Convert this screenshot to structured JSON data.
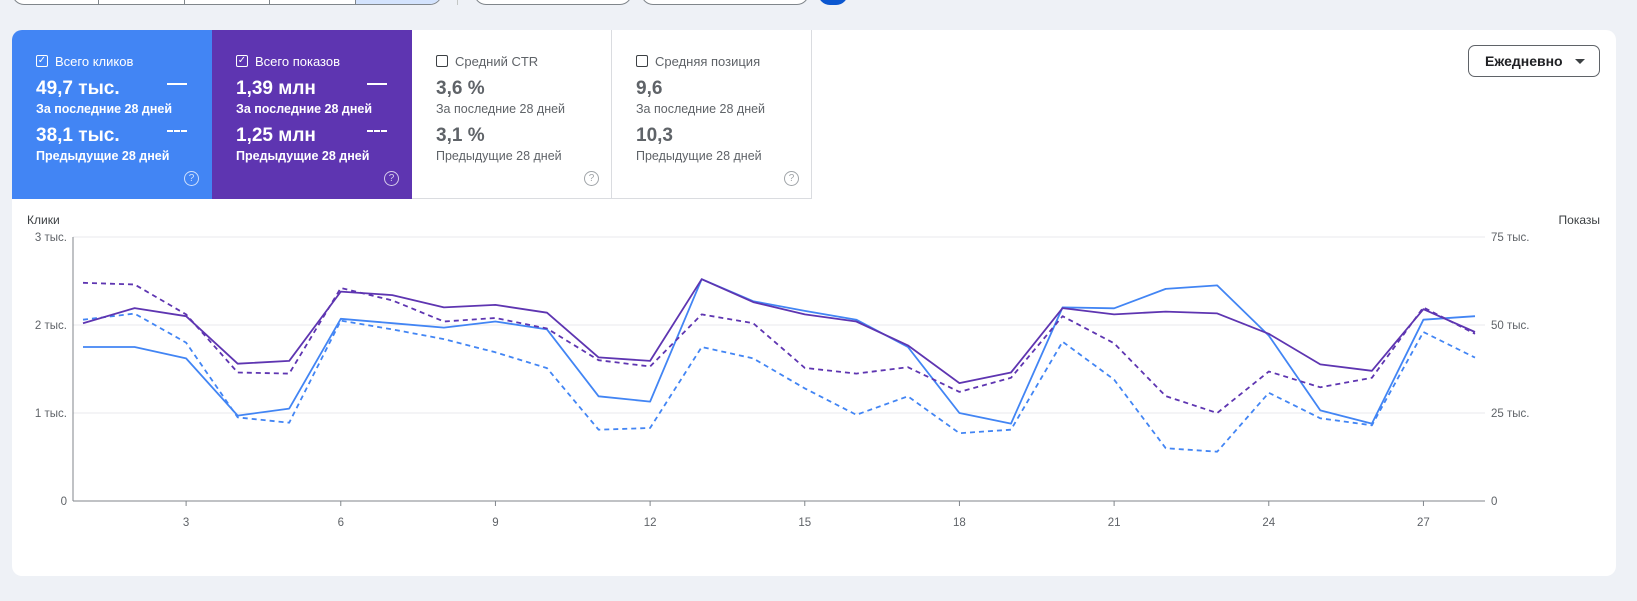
{
  "metrics": {
    "clicks": {
      "label": "Всего кликов",
      "value": "49,7 тыс.",
      "value_period": "За последние 28 дней",
      "prev": "38,1 тыс.",
      "prev_period": "Предыдущие 28 дней",
      "checked": true,
      "color": "#4285f4"
    },
    "impressions": {
      "label": "Всего показов",
      "value": "1,39 млн",
      "value_period": "За последние 28 дней",
      "prev": "1,25 млн",
      "prev_period": "Предыдущие 28 дней",
      "checked": true,
      "color": "#5e35b1"
    },
    "ctr": {
      "label": "Средний CTR",
      "value": "3,6 %",
      "value_period": "За последние 28 дней",
      "prev": "3,1 %",
      "prev_period": "Предыдущие 28 дней",
      "checked": false
    },
    "position": {
      "label": "Средняя позиция",
      "value": "9,6",
      "value_period": "За последние 28 дней",
      "prev": "10,3",
      "prev_period": "Предыдущие 28 дней",
      "checked": false
    }
  },
  "dropdown": {
    "selected": "Ежедневно"
  },
  "icons": {
    "help": "help-circle-icon",
    "checkbox": "checkbox-icon",
    "caret": "caret-down-icon"
  },
  "chart_data": {
    "type": "line",
    "ylabel_left": "Клики",
    "ylabel_right": "Показы",
    "left_ticks": [
      "0",
      "1 тыс.",
      "2 тыс.",
      "3 тыс."
    ],
    "right_ticks": [
      "0",
      "25 тыс.",
      "50 тыс.",
      "75 тыс."
    ],
    "ylim_left": [
      0,
      3000
    ],
    "ylim_right": [
      0,
      75000
    ],
    "x": [
      1,
      2,
      3,
      4,
      5,
      6,
      7,
      8,
      9,
      10,
      11,
      12,
      13,
      14,
      15,
      16,
      17,
      18,
      19,
      20,
      21,
      22,
      23,
      24,
      25,
      26,
      27,
      28
    ],
    "x_ticks": [
      3,
      6,
      9,
      12,
      15,
      18,
      21,
      24,
      27
    ],
    "grid": true,
    "series": [
      {
        "name": "Всего кликов — За последние 28 дней",
        "axis": "left",
        "color": "#4285f4",
        "dash": false,
        "values": [
          1750,
          1750,
          1620,
          970,
          1050,
          2070,
          2020,
          1970,
          2040,
          1950,
          1190,
          1130,
          2520,
          2270,
          2160,
          2060,
          1750,
          1000,
          880,
          2200,
          2190,
          2410,
          2450,
          1880,
          1030,
          880,
          2060,
          2100
        ]
      },
      {
        "name": "Всего кликов — Предыдущие 28 дней",
        "axis": "left",
        "color": "#4285f4",
        "dash": true,
        "values": [
          2060,
          2130,
          1800,
          950,
          890,
          2050,
          1950,
          1840,
          1690,
          1510,
          810,
          830,
          1750,
          1620,
          1280,
          980,
          1190,
          770,
          810,
          1810,
          1380,
          600,
          560,
          1230,
          940,
          860,
          1920,
          1630
        ]
      },
      {
        "name": "Всего показов — За последние 28 дней",
        "axis": "right",
        "color": "#5e35b1",
        "dash": false,
        "values": [
          50500,
          54800,
          52500,
          39000,
          39800,
          59500,
          58500,
          55000,
          55700,
          53500,
          40800,
          39800,
          63000,
          56500,
          53000,
          51000,
          44200,
          33500,
          36500,
          54800,
          53000,
          53800,
          53300,
          47500,
          38800,
          37000,
          54500,
          48000
        ]
      },
      {
        "name": "Всего показов — Предыдущие 28 дней",
        "axis": "right",
        "color": "#5e35b1",
        "dash": true,
        "values": [
          62000,
          61500,
          53000,
          36500,
          36200,
          60500,
          57000,
          51000,
          52000,
          49000,
          40000,
          38200,
          53000,
          50500,
          37800,
          36200,
          38000,
          31000,
          35000,
          52500,
          44800,
          29800,
          25000,
          36800,
          32300,
          35000,
          55000,
          47500
        ]
      }
    ]
  }
}
